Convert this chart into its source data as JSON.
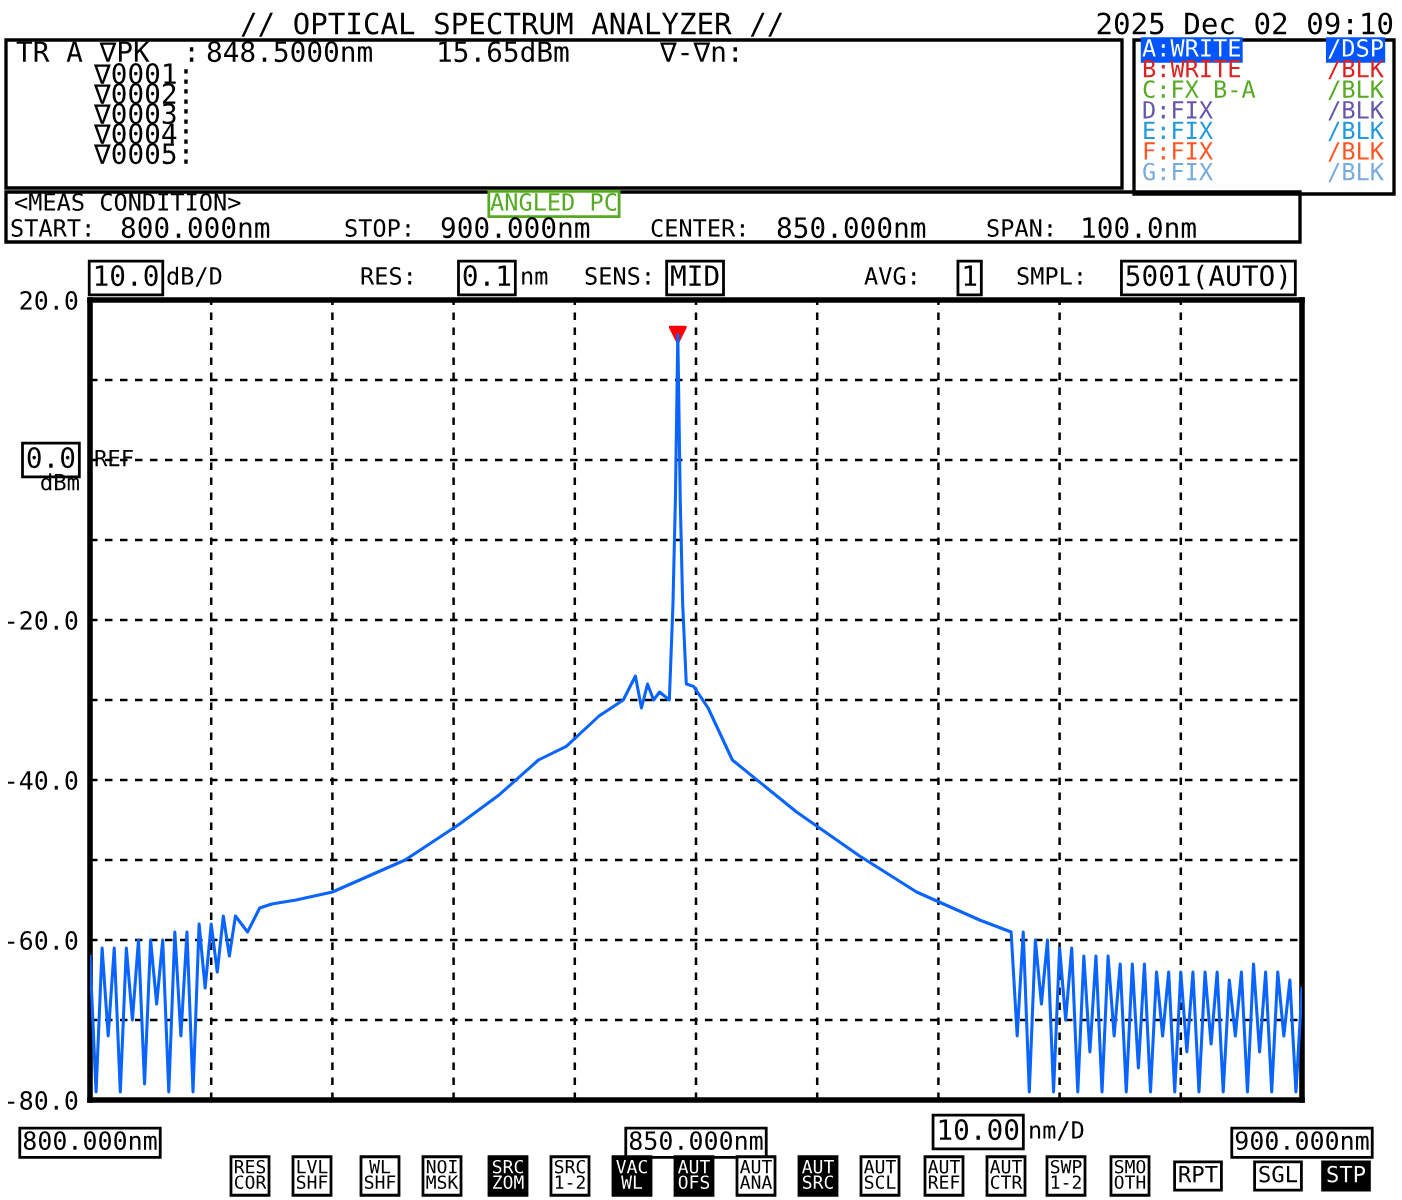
{
  "chart_data": {
    "type": "line",
    "title": "// OPTICAL SPECTRUM ANALYZER //",
    "xlim": [
      800,
      900
    ],
    "ylim": [
      -80,
      20
    ],
    "xticks": [
      {
        "value": 800,
        "label": "800.000nm"
      },
      {
        "value": 810,
        "label": null
      },
      {
        "value": 820,
        "label": null
      },
      {
        "value": 830,
        "label": null
      },
      {
        "value": 840,
        "label": null
      },
      {
        "value": 850,
        "label": "850.000nm"
      },
      {
        "value": 860,
        "label": null
      },
      {
        "value": 870,
        "label": null
      },
      {
        "value": 880,
        "label": null
      },
      {
        "value": 890,
        "label": null
      },
      {
        "value": 900,
        "label": "900.000nm"
      }
    ],
    "yticks": [
      {
        "value": 20,
        "label": "20.0"
      },
      {
        "value": 10,
        "label": null
      },
      {
        "value": 0,
        "label": null
      },
      {
        "value": -10,
        "label": null
      },
      {
        "value": -20,
        "label": "-20.0"
      },
      {
        "value": -30,
        "label": null
      },
      {
        "value": -40,
        "label": "-40.0"
      },
      {
        "value": -50,
        "label": null
      },
      {
        "value": -60,
        "label": "-60.0"
      },
      {
        "value": -70,
        "label": null
      },
      {
        "value": -80,
        "label": "-80.0"
      }
    ],
    "grid": true,
    "series": [
      {
        "color": "#0a64ff",
        "x": [
          800,
          800.5,
          801,
          801.5,
          802,
          802.5,
          803,
          803.5,
          804,
          804.5,
          805,
          805.5,
          806,
          806.5,
          807,
          807.5,
          808,
          808.5,
          809,
          809.5,
          810,
          810.5,
          811,
          811.5,
          812,
          813,
          814,
          815,
          817,
          820,
          823,
          826,
          828,
          830.5,
          833.8,
          837,
          839.3,
          842,
          844,
          845,
          845.5,
          846,
          846.5,
          847,
          847.8,
          848.1,
          848.3,
          848.5,
          848.7,
          848.9,
          849.2,
          849.8,
          851,
          853,
          858.3,
          863.5,
          868.2,
          873.4,
          876,
          876.5,
          877,
          877.5,
          878,
          878.5,
          879,
          879.5,
          880,
          880.5,
          881,
          881.5,
          882,
          882.5,
          883,
          883.5,
          884,
          884.5,
          885,
          885.5,
          886,
          886.5,
          887,
          887.5,
          888,
          888.5,
          889,
          889.5,
          890,
          890.5,
          891,
          891.5,
          892,
          892.5,
          893,
          893.5,
          894,
          894.5,
          895,
          895.5,
          896,
          896.5,
          897,
          897.5,
          898,
          898.5,
          899,
          899.5,
          900
        ],
        "values": [
          -62,
          -79,
          -61,
          -72,
          -61,
          -79,
          -61,
          -70,
          -60,
          -78,
          -60,
          -68,
          -60,
          -79,
          -59,
          -72,
          -59,
          -79,
          -58,
          -66,
          -58,
          -64,
          -57,
          -62,
          -57,
          -59,
          -56,
          -55.5,
          -55,
          -54,
          -52,
          -50,
          -48,
          -45.5,
          -41.8,
          -37.5,
          -35.8,
          -32,
          -30,
          -27,
          -31,
          -28,
          -30,
          -29,
          -30,
          -18,
          -5,
          15.65,
          -5,
          -18,
          -28,
          -28.3,
          -31,
          -37.5,
          -44,
          -49.5,
          -54,
          -57.5,
          -59,
          -72,
          -59,
          -79,
          -60,
          -68,
          -60,
          -79,
          -61,
          -70,
          -61,
          -79,
          -62,
          -74,
          -62,
          -79,
          -62,
          -72,
          -63,
          -79,
          -63,
          -76,
          -63,
          -79,
          -64,
          -72,
          -64,
          -79,
          -64,
          -74,
          -64,
          -79,
          -64,
          -73,
          -64,
          -79,
          -65,
          -72,
          -64,
          -79,
          -63,
          -74,
          -64,
          -79,
          -64,
          -72,
          -65,
          -79,
          -66
        ]
      },
      {
        "type": "scatter",
        "color": "#ff0000",
        "marker": "triangle",
        "x": [
          848.5
        ],
        "values": [
          15.65
        ]
      }
    ],
    "annotations": [
      "2025 Dec 02 09:10",
      "TR A ∇PK  :",
      "848.5000nm",
      "15.65dBm",
      "∇-∇n:",
      "∇0001:",
      "∇0002:",
      "∇0003:",
      "∇0004:",
      "∇0005:",
      "A:WRITE",
      "/DSP",
      "B:WRITE",
      "/BLK",
      "C:FX B-A",
      "/BLK",
      "D:FIX",
      "/BLK",
      "E:FIX",
      "/BLK",
      "F:FIX",
      "/BLK",
      "G:FIX",
      "/BLK",
      "<MEAS CONDITION>",
      "ANGLED PC",
      "START:",
      "800.000nm",
      "STOP:",
      "900.000nm",
      "CENTER:",
      "850.000nm",
      "SPAN:",
      "100.0nm",
      "10.0",
      "dB/D",
      "RES:",
      "0.1",
      "nm",
      "SENS:",
      "MID",
      "AVG:",
      "1",
      "SMPL:",
      "5001(AUTO)",
      "0.0",
      "REF",
      "dBm",
      "10.00",
      "nm/D",
      "RES\nCOR",
      "LVL\nSHF",
      "WL\nSHF",
      "NOI\nMSK",
      "SRC\nZOM",
      "SRC\n1-2",
      "VAC\nWL",
      "AUT\nOFS",
      "AUT\nANA",
      "AUT\nSRC",
      "AUT\nSCL",
      "AUT\nREF",
      "AUT\nCTR",
      "SWP\n1-2",
      "SMO\nOTH",
      "RPT",
      "SGL",
      "STP"
    ]
  }
}
